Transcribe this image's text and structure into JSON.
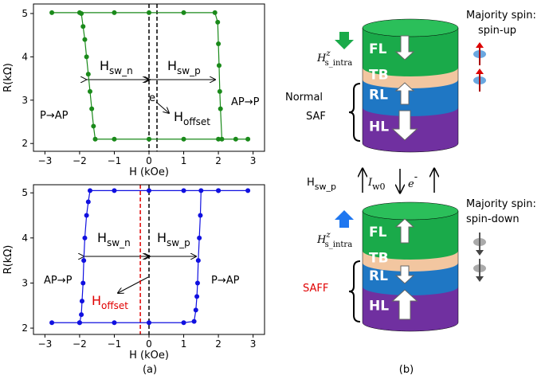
{
  "chart_data": [
    {
      "type": "line",
      "xlabel": "H (kOe)",
      "ylabel": "R(kΩ)",
      "xlim": [
        -3.33,
        3.33
      ],
      "ylim": [
        1.82,
        5.22
      ],
      "xticks": [
        {
          "value": -3,
          "label": "−3"
        },
        {
          "value": -2,
          "label": "−2"
        },
        {
          "value": -1,
          "label": "−1"
        },
        0,
        1,
        2,
        3
      ],
      "yticks": [
        2,
        3,
        4,
        5
      ],
      "x": [
        -2.8,
        -2,
        -1,
        0,
        1,
        1.9,
        1.98,
        2.0,
        2.02,
        2.04,
        2.06,
        2.1,
        2.5,
        2.85,
        2,
        1,
        0,
        -1,
        -1.55,
        -1.6,
        -1.65,
        -1.7,
        -1.75,
        -1.8,
        -1.85,
        -1.9,
        -1.95
      ],
      "series": [
        {
          "color": "#1a8a1a",
          "values": [
            5.02,
            5.02,
            5.02,
            5.02,
            5.02,
            5.02,
            4.8,
            4.3,
            3.8,
            3.2,
            2.8,
            2.1,
            2.1,
            2.1,
            2.1,
            2.1,
            2.1,
            2.1,
            2.1,
            2.4,
            2.8,
            3.2,
            3.6,
            4.0,
            4.4,
            4.7,
            5.0
          ]
        }
      ],
      "vlines": [
        {
          "x": 0,
          "color": "#000000"
        },
        {
          "x": 0.23,
          "color": "#000000"
        }
      ],
      "annotations": [
        {
          "text": "H",
          "sub": "sw_n"
        },
        {
          "text": "H",
          "sub": "sw_p"
        },
        {
          "text": "P→AP"
        },
        {
          "text": "AP→P"
        },
        {
          "text": "H",
          "sub": "offset"
        },
        {
          "text": "e"
        }
      ]
    },
    {
      "type": "line",
      "xlabel": "H (kOe)",
      "ylabel": "R(kΩ)",
      "xlim": [
        -3.33,
        3.33
      ],
      "ylim": [
        1.86,
        5.18
      ],
      "xticks": [
        {
          "value": -3,
          "label": "−3"
        },
        {
          "value": -2,
          "label": "−2"
        },
        {
          "value": -1,
          "label": "−1"
        },
        0,
        1,
        2,
        3
      ],
      "yticks": [
        2,
        3,
        4,
        5
      ],
      "x": [
        -2.8,
        -2,
        -1,
        0,
        1,
        1.3,
        1.35,
        1.38,
        1.4,
        1.42,
        1.45,
        1.48,
        1.5,
        2,
        2.85,
        2,
        1,
        0,
        -1,
        -1.7,
        -1.75,
        -1.8,
        -1.85,
        -1.88,
        -1.9,
        -1.93,
        -1.95,
        -2.0
      ],
      "series": [
        {
          "color": "#1010e0",
          "values": [
            2.12,
            2.12,
            2.12,
            2.12,
            2.12,
            2.15,
            2.4,
            2.7,
            3.0,
            3.5,
            4.0,
            4.5,
            5.05,
            5.05,
            5.05,
            5.05,
            5.05,
            5.05,
            5.05,
            5.05,
            4.8,
            4.5,
            4.0,
            3.5,
            3.0,
            2.6,
            2.3,
            2.12
          ]
        }
      ],
      "vlines": [
        {
          "x": 0,
          "color": "#000000"
        },
        {
          "x": -0.25,
          "color": "#e00000"
        }
      ],
      "annotations": [
        {
          "text": "H",
          "sub": "sw_n"
        },
        {
          "text": "H",
          "sub": "sw_p"
        },
        {
          "text": "AP→P"
        },
        {
          "text": "P→AP"
        },
        {
          "text": "H",
          "sub": "offset"
        }
      ]
    }
  ],
  "figure": {
    "panel_a": "(a)",
    "panel_b": "(b)"
  },
  "diagram": {
    "top": {
      "majority": "Majority spin:",
      "spin": "spin-up",
      "field": "H",
      "field_sup": "z",
      "field_sub": "s_intra",
      "label1": "Normal",
      "label2": "SAF"
    },
    "bottom": {
      "majority": "Majority spin:",
      "spin": "spin-down",
      "field": "H",
      "field_sup": "z",
      "field_sub": "s_intra",
      "label": "SAFF"
    },
    "layers": [
      "FL",
      "TB",
      "RL",
      "HL"
    ],
    "middle": {
      "hsw": "H",
      "hsw_sub": "sw_p",
      "current": "I",
      "current_sub": "w0",
      "electron": "e",
      "electron_sup": "-"
    }
  }
}
